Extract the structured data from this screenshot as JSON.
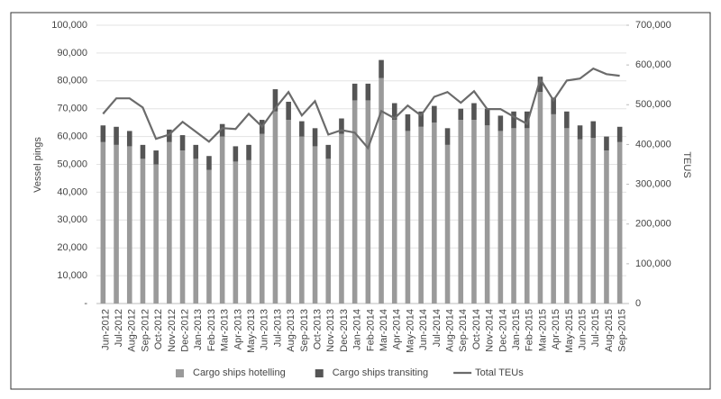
{
  "chart_data": {
    "type": "bar_line",
    "categories": [
      "Jun-2012",
      "Jul-2012",
      "Aug-2012",
      "Sep-2012",
      "Oct-2012",
      "Nov-2012",
      "Dec-2012",
      "Jan-2013",
      "Feb-2013",
      "Mar-2013",
      "Apr-2013",
      "May-2013",
      "Jun-2013",
      "Jul-2013",
      "Aug-2013",
      "Sep-2013",
      "Oct-2013",
      "Nov-2013",
      "Dec-2013",
      "Jan-2014",
      "Feb-2014",
      "Mar-2014",
      "Apr-2014",
      "May-2014",
      "Jun-2014",
      "Jul-2014",
      "Aug-2014",
      "Sep-2014",
      "Oct-2014",
      "Nov-2014",
      "Dec-2014",
      "Jan-2015",
      "Feb-2015",
      "Mar-2015",
      "Apr-2015",
      "May-2015",
      "Jun-2015",
      "Jul-2015",
      "Aug-2015",
      "Sep-2015"
    ],
    "series": [
      {
        "name": "Cargo ships hotelling",
        "color": "#9a9a9a",
        "values": [
          58000,
          57000,
          56500,
          52000,
          50000,
          58000,
          55000,
          52000,
          48000,
          60000,
          51000,
          51500,
          61000,
          69000,
          66000,
          60000,
          56500,
          52000,
          61000,
          73000,
          73000,
          81000,
          66000,
          62000,
          63500,
          65000,
          57000,
          66000,
          66000,
          64000,
          62000,
          63000,
          63000,
          76000,
          68000,
          63000,
          59000,
          59500,
          55000,
          58000
        ]
      },
      {
        "name": "Cargo ships transiting",
        "color": "#555555",
        "values": [
          6000,
          6500,
          5500,
          5000,
          5000,
          4500,
          5500,
          5000,
          5000,
          4500,
          5500,
          5500,
          5000,
          8000,
          6500,
          5500,
          6500,
          5000,
          5500,
          6000,
          6000,
          6500,
          6000,
          6000,
          5500,
          6000,
          6000,
          4000,
          6000,
          6000,
          5500,
          6000,
          6000,
          5500,
          6000,
          6000,
          5000,
          6000,
          5000,
          5500
        ]
      },
      {
        "name": "Total TEUs",
        "color": "#6b6b6b",
        "axis": "y2",
        "values": [
          477000,
          516000,
          516000,
          493000,
          414000,
          425000,
          457000,
          432000,
          407000,
          441000,
          439000,
          477000,
          445000,
          491000,
          532000,
          473000,
          509000,
          425000,
          436000,
          430000,
          391000,
          484000,
          466000,
          498000,
          473000,
          520000,
          532000,
          505000,
          534000,
          489000,
          489000,
          470000,
          452000,
          564000,
          511000,
          561000,
          566000,
          591000,
          577000,
          573000
        ]
      }
    ],
    "ylabel": "Vessel pings",
    "y2label": "TEUS",
    "ylim": [
      0,
      100000
    ],
    "yticks": [
      {
        "value": 0,
        "label": "-"
      },
      {
        "value": 10000,
        "label": "10,000"
      },
      {
        "value": 20000,
        "label": "20,000"
      },
      {
        "value": 30000,
        "label": "30,000"
      },
      {
        "value": 40000,
        "label": "40,000"
      },
      {
        "value": 50000,
        "label": "50,000"
      },
      {
        "value": 60000,
        "label": "60,000"
      },
      {
        "value": 70000,
        "label": "70,000"
      },
      {
        "value": 80000,
        "label": "80,000"
      },
      {
        "value": 90000,
        "label": "90,000"
      },
      {
        "value": 100000,
        "label": "100,000"
      }
    ],
    "y2lim": [
      0,
      700000
    ],
    "y2ticks": [
      0,
      {
        "value": 100000,
        "label": "100,000"
      },
      {
        "value": 200000,
        "label": "200,000"
      },
      {
        "value": 300000,
        "label": "300,000"
      },
      {
        "value": 400000,
        "label": "400,000"
      },
      {
        "value": 500000,
        "label": "500,000"
      },
      {
        "value": 600000,
        "label": "600,000"
      },
      {
        "value": 700000,
        "label": "700,000"
      }
    ],
    "grid": true,
    "legend": "bottom"
  }
}
